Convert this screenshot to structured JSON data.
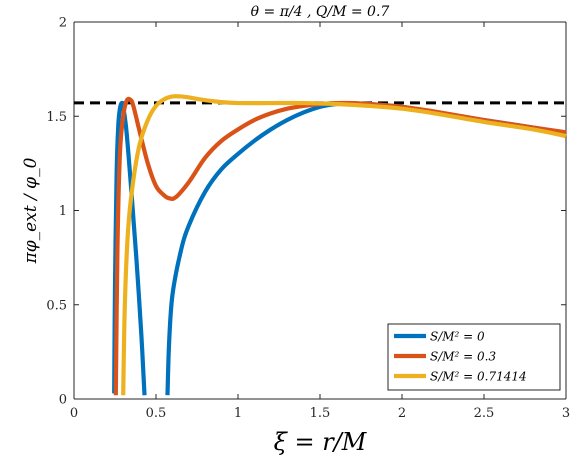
{
  "chart_data": {
    "type": "line",
    "title": "θ = π/4 ,    Q/M = 0.7",
    "xlabel": "ξ = r/M",
    "ylabel": "πφ_ext / φ_0",
    "xlim": [
      0,
      3
    ],
    "ylim": [
      0,
      2
    ],
    "xticks": [
      0,
      0.5,
      1,
      1.5,
      2,
      2.5,
      3
    ],
    "yticks": [
      0,
      0.5,
      1,
      1.5,
      2
    ],
    "xtick_labels": [
      "0",
      "0.5",
      "1",
      "1.5",
      "2",
      "2.5",
      "3"
    ],
    "ytick_labels": [
      "0",
      "0.5",
      "1",
      "1.5",
      "2"
    ],
    "grid": false,
    "legend_position": "bottom-right",
    "reference_line": {
      "y": 1.5708,
      "style": "dashed",
      "color": "#000000"
    },
    "series": [
      {
        "name": "S/M² = 0",
        "color": "#0072BD",
        "segments": [
          [
            [
              0.245,
              0.03
            ],
            [
              0.25,
              0.6
            ],
            [
              0.26,
              1.2
            ],
            [
              0.27,
              1.45
            ],
            [
              0.28,
              1.54
            ],
            [
              0.29,
              1.57
            ],
            [
              0.3,
              1.55
            ],
            [
              0.32,
              1.42
            ],
            [
              0.35,
              1.1
            ],
            [
              0.38,
              0.75
            ],
            [
              0.41,
              0.35
            ],
            [
              0.43,
              0.02
            ]
          ],
          [
            [
              0.57,
              0.02
            ],
            [
              0.58,
              0.3
            ],
            [
              0.6,
              0.55
            ],
            [
              0.65,
              0.78
            ],
            [
              0.7,
              0.92
            ],
            [
              0.8,
              1.1
            ],
            [
              0.9,
              1.22
            ],
            [
              1.0,
              1.3
            ],
            [
              1.1,
              1.37
            ],
            [
              1.2,
              1.43
            ],
            [
              1.3,
              1.48
            ],
            [
              1.4,
              1.52
            ],
            [
              1.5,
              1.55
            ],
            [
              1.6,
              1.565
            ],
            [
              1.7,
              1.568
            ],
            [
              1.8,
              1.565
            ],
            [
              2.0,
              1.55
            ],
            [
              2.2,
              1.52
            ],
            [
              2.5,
              1.48
            ],
            [
              2.8,
              1.44
            ],
            [
              3.0,
              1.41
            ]
          ]
        ]
      },
      {
        "name": "S/M² = 0.3",
        "color": "#D95319",
        "segments": [
          [
            [
              0.255,
              0.02
            ],
            [
              0.265,
              0.8
            ],
            [
              0.28,
              1.3
            ],
            [
              0.3,
              1.5
            ],
            [
              0.32,
              1.58
            ],
            [
              0.34,
              1.59
            ],
            [
              0.36,
              1.56
            ],
            [
              0.4,
              1.42
            ],
            [
              0.45,
              1.25
            ],
            [
              0.5,
              1.13
            ],
            [
              0.55,
              1.08
            ],
            [
              0.58,
              1.065
            ],
            [
              0.62,
              1.07
            ],
            [
              0.7,
              1.15
            ],
            [
              0.8,
              1.28
            ],
            [
              0.9,
              1.37
            ],
            [
              1.0,
              1.43
            ],
            [
              1.1,
              1.48
            ],
            [
              1.2,
              1.515
            ],
            [
              1.3,
              1.54
            ],
            [
              1.4,
              1.555
            ],
            [
              1.5,
              1.565
            ],
            [
              1.6,
              1.57
            ],
            [
              1.7,
              1.57
            ],
            [
              1.8,
              1.565
            ],
            [
              2.0,
              1.55
            ],
            [
              2.2,
              1.525
            ],
            [
              2.5,
              1.48
            ],
            [
              2.8,
              1.44
            ],
            [
              3.0,
              1.415
            ]
          ]
        ]
      },
      {
        "name": "S/M² = 0.71414",
        "color": "#EDB120",
        "segments": [
          [
            [
              0.3,
              0.02
            ],
            [
              0.31,
              0.5
            ],
            [
              0.33,
              0.9
            ],
            [
              0.36,
              1.15
            ],
            [
              0.4,
              1.35
            ],
            [
              0.45,
              1.48
            ],
            [
              0.5,
              1.555
            ],
            [
              0.55,
              1.59
            ],
            [
              0.6,
              1.605
            ],
            [
              0.65,
              1.605
            ],
            [
              0.7,
              1.6
            ],
            [
              0.8,
              1.585
            ],
            [
              0.9,
              1.575
            ],
            [
              1.0,
              1.57
            ],
            [
              1.2,
              1.57
            ],
            [
              1.4,
              1.57
            ],
            [
              1.6,
              1.565
            ],
            [
              1.8,
              1.555
            ],
            [
              2.0,
              1.54
            ],
            [
              2.2,
              1.515
            ],
            [
              2.5,
              1.47
            ],
            [
              2.8,
              1.43
            ],
            [
              3.0,
              1.395
            ]
          ]
        ]
      }
    ]
  }
}
